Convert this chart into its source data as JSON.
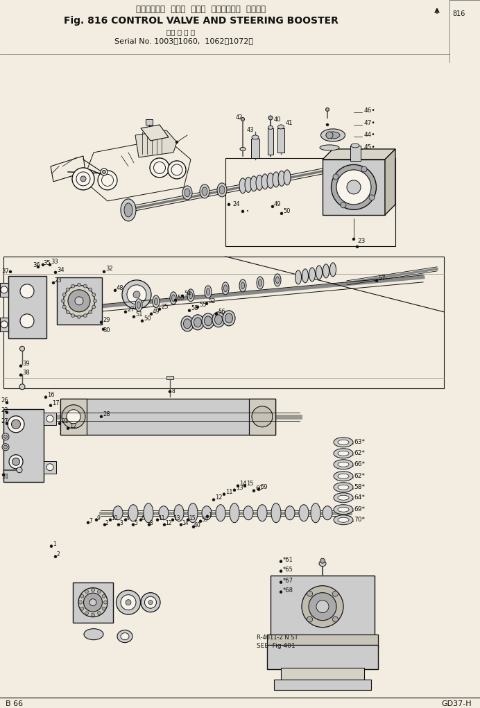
{
  "title_line1": "コントロール  バルブ  および  ステアリング  ブースタ",
  "title_line2": "Fig. 816 CONTROL VALVE AND STEERING BOOSTER",
  "title_line3": "（適 用 号 機",
  "title_line4": "Serial No. 1003～1060,  1062～1072）",
  "page_left": "B 66",
  "page_right": "GD37-H",
  "bg_color": "#f2ede0",
  "fg_color": "#111111",
  "note1": "R-4011-2 N ST",
  "note2": "SEE  Fig 401",
  "side_num": "816"
}
